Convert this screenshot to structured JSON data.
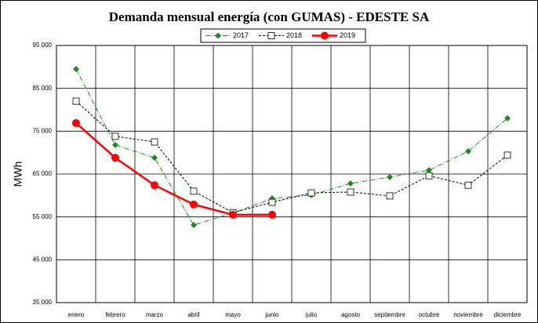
{
  "chart_data": {
    "type": "line",
    "title": "Demanda mensual energía (con GUMAS) - EDESTE SA",
    "y_label": "MWh",
    "categories": [
      "enero",
      "febrero",
      "marzo",
      "abril",
      "mayo",
      "junio",
      "julio",
      "agosto",
      "septiembre",
      "octubre",
      "noviembre",
      "diciembre"
    ],
    "series": [
      {
        "name": "2017",
        "color": "#1e8a1e",
        "line_style": "dashdot",
        "marker": "diamond",
        "values": [
          89500,
          71800,
          68800,
          53100,
          55900,
          59300,
          60100,
          62800,
          64300,
          65900,
          70300,
          78000
        ]
      },
      {
        "name": "2018",
        "color": "#000000",
        "line_style": "dashed",
        "marker": "open-square",
        "values": [
          82000,
          73800,
          72500,
          61000,
          56000,
          58400,
          60600,
          60800,
          59900,
          64600,
          62400,
          69400
        ]
      },
      {
        "name": "2019",
        "color": "#ff0000",
        "line_style": "solid",
        "marker": "circle",
        "values": [
          76900,
          68800,
          62400,
          57900,
          55500,
          55500,
          null,
          null,
          null,
          null,
          null,
          null
        ]
      }
    ],
    "ylim": [
      35000,
      95000
    ],
    "yticks": [
      {
        "value": 35000,
        "label": "35 000"
      },
      {
        "value": 45000,
        "label": "45 000"
      },
      {
        "value": 55000,
        "label": "55 000"
      },
      {
        "value": 65000,
        "label": "65 000"
      },
      {
        "value": 75000,
        "label": "75 000"
      },
      {
        "value": 85000,
        "label": "85 000"
      },
      {
        "value": 95000,
        "label": "95 000"
      }
    ],
    "grid": true,
    "legend": "top"
  }
}
